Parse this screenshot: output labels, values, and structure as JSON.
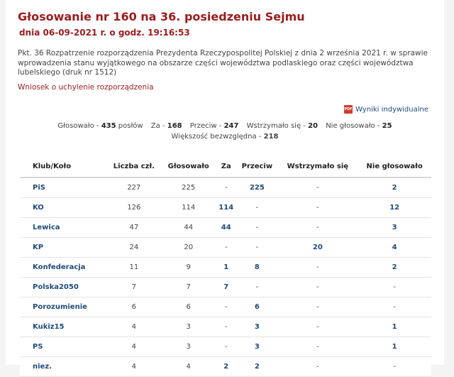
{
  "header": {
    "title": "Głosowanie nr 160 na 36. posiedzeniu Sejmu",
    "subtitle": "dnia 06-09-2021 r. o godz. 19:16:53"
  },
  "description": "Pkt. 36 Rozpatrzenie rozporządzenia Prezydenta Rzeczypospolitej Polskiej z dnia 2 września 2021 r. w sprawie wprowadzenia stanu wyjątkowego na obszarze części województwa podlaskiego oraz części województwa lubelskiego (druk nr 1512)",
  "motion": "Wniosek o uchylenie rozporządzenia",
  "individual_results": {
    "label": "Wyniki indywidualne",
    "icon": "pdf-icon",
    "icon_text": "PDF"
  },
  "summary": {
    "voted_label": "Głosowało -",
    "voted_value": "435",
    "voted_unit": "posłów",
    "for_label": "Za -",
    "for_value": "168",
    "against_label": "Przeciw",
    "against_value": "247",
    "abstain_label": "Wstrzymało się -",
    "abstain_value": "20",
    "notvoted_label": "Nie głosowało -",
    "notvoted_value": "25",
    "majority_label": "Większość bezwzględna -",
    "majority_value": "218"
  },
  "table": {
    "headers": [
      "Klub/Koło",
      "Liczba czł.",
      "Głosowało",
      "Za",
      "Przeciw",
      "Wstrzymało się",
      "Nie głosowało"
    ],
    "rows": [
      [
        "PiS",
        "227",
        "225",
        "-",
        "225",
        "-",
        "2"
      ],
      [
        "KO",
        "126",
        "114",
        "114",
        "-",
        "-",
        "12"
      ],
      [
        "Lewica",
        "47",
        "44",
        "44",
        "-",
        "-",
        "3"
      ],
      [
        "KP",
        "24",
        "20",
        "-",
        "-",
        "20",
        "4"
      ],
      [
        "Konfederacja",
        "11",
        "9",
        "1",
        "8",
        "-",
        "2"
      ],
      [
        "Polska2050",
        "7",
        "7",
        "7",
        "-",
        "-",
        "-"
      ],
      [
        "Porozumienie",
        "6",
        "6",
        "-",
        "6",
        "-",
        "-"
      ],
      [
        "Kukiz15",
        "4",
        "3",
        "-",
        "3",
        "-",
        "1"
      ],
      [
        "PS",
        "4",
        "3",
        "-",
        "3",
        "-",
        "1"
      ],
      [
        "niez.",
        "4",
        "4",
        "2",
        "2",
        "-",
        "-"
      ]
    ]
  },
  "colors": {
    "title": "#9c1c1c",
    "link": "#1e4b7a",
    "pdf": "#d23a2a"
  }
}
